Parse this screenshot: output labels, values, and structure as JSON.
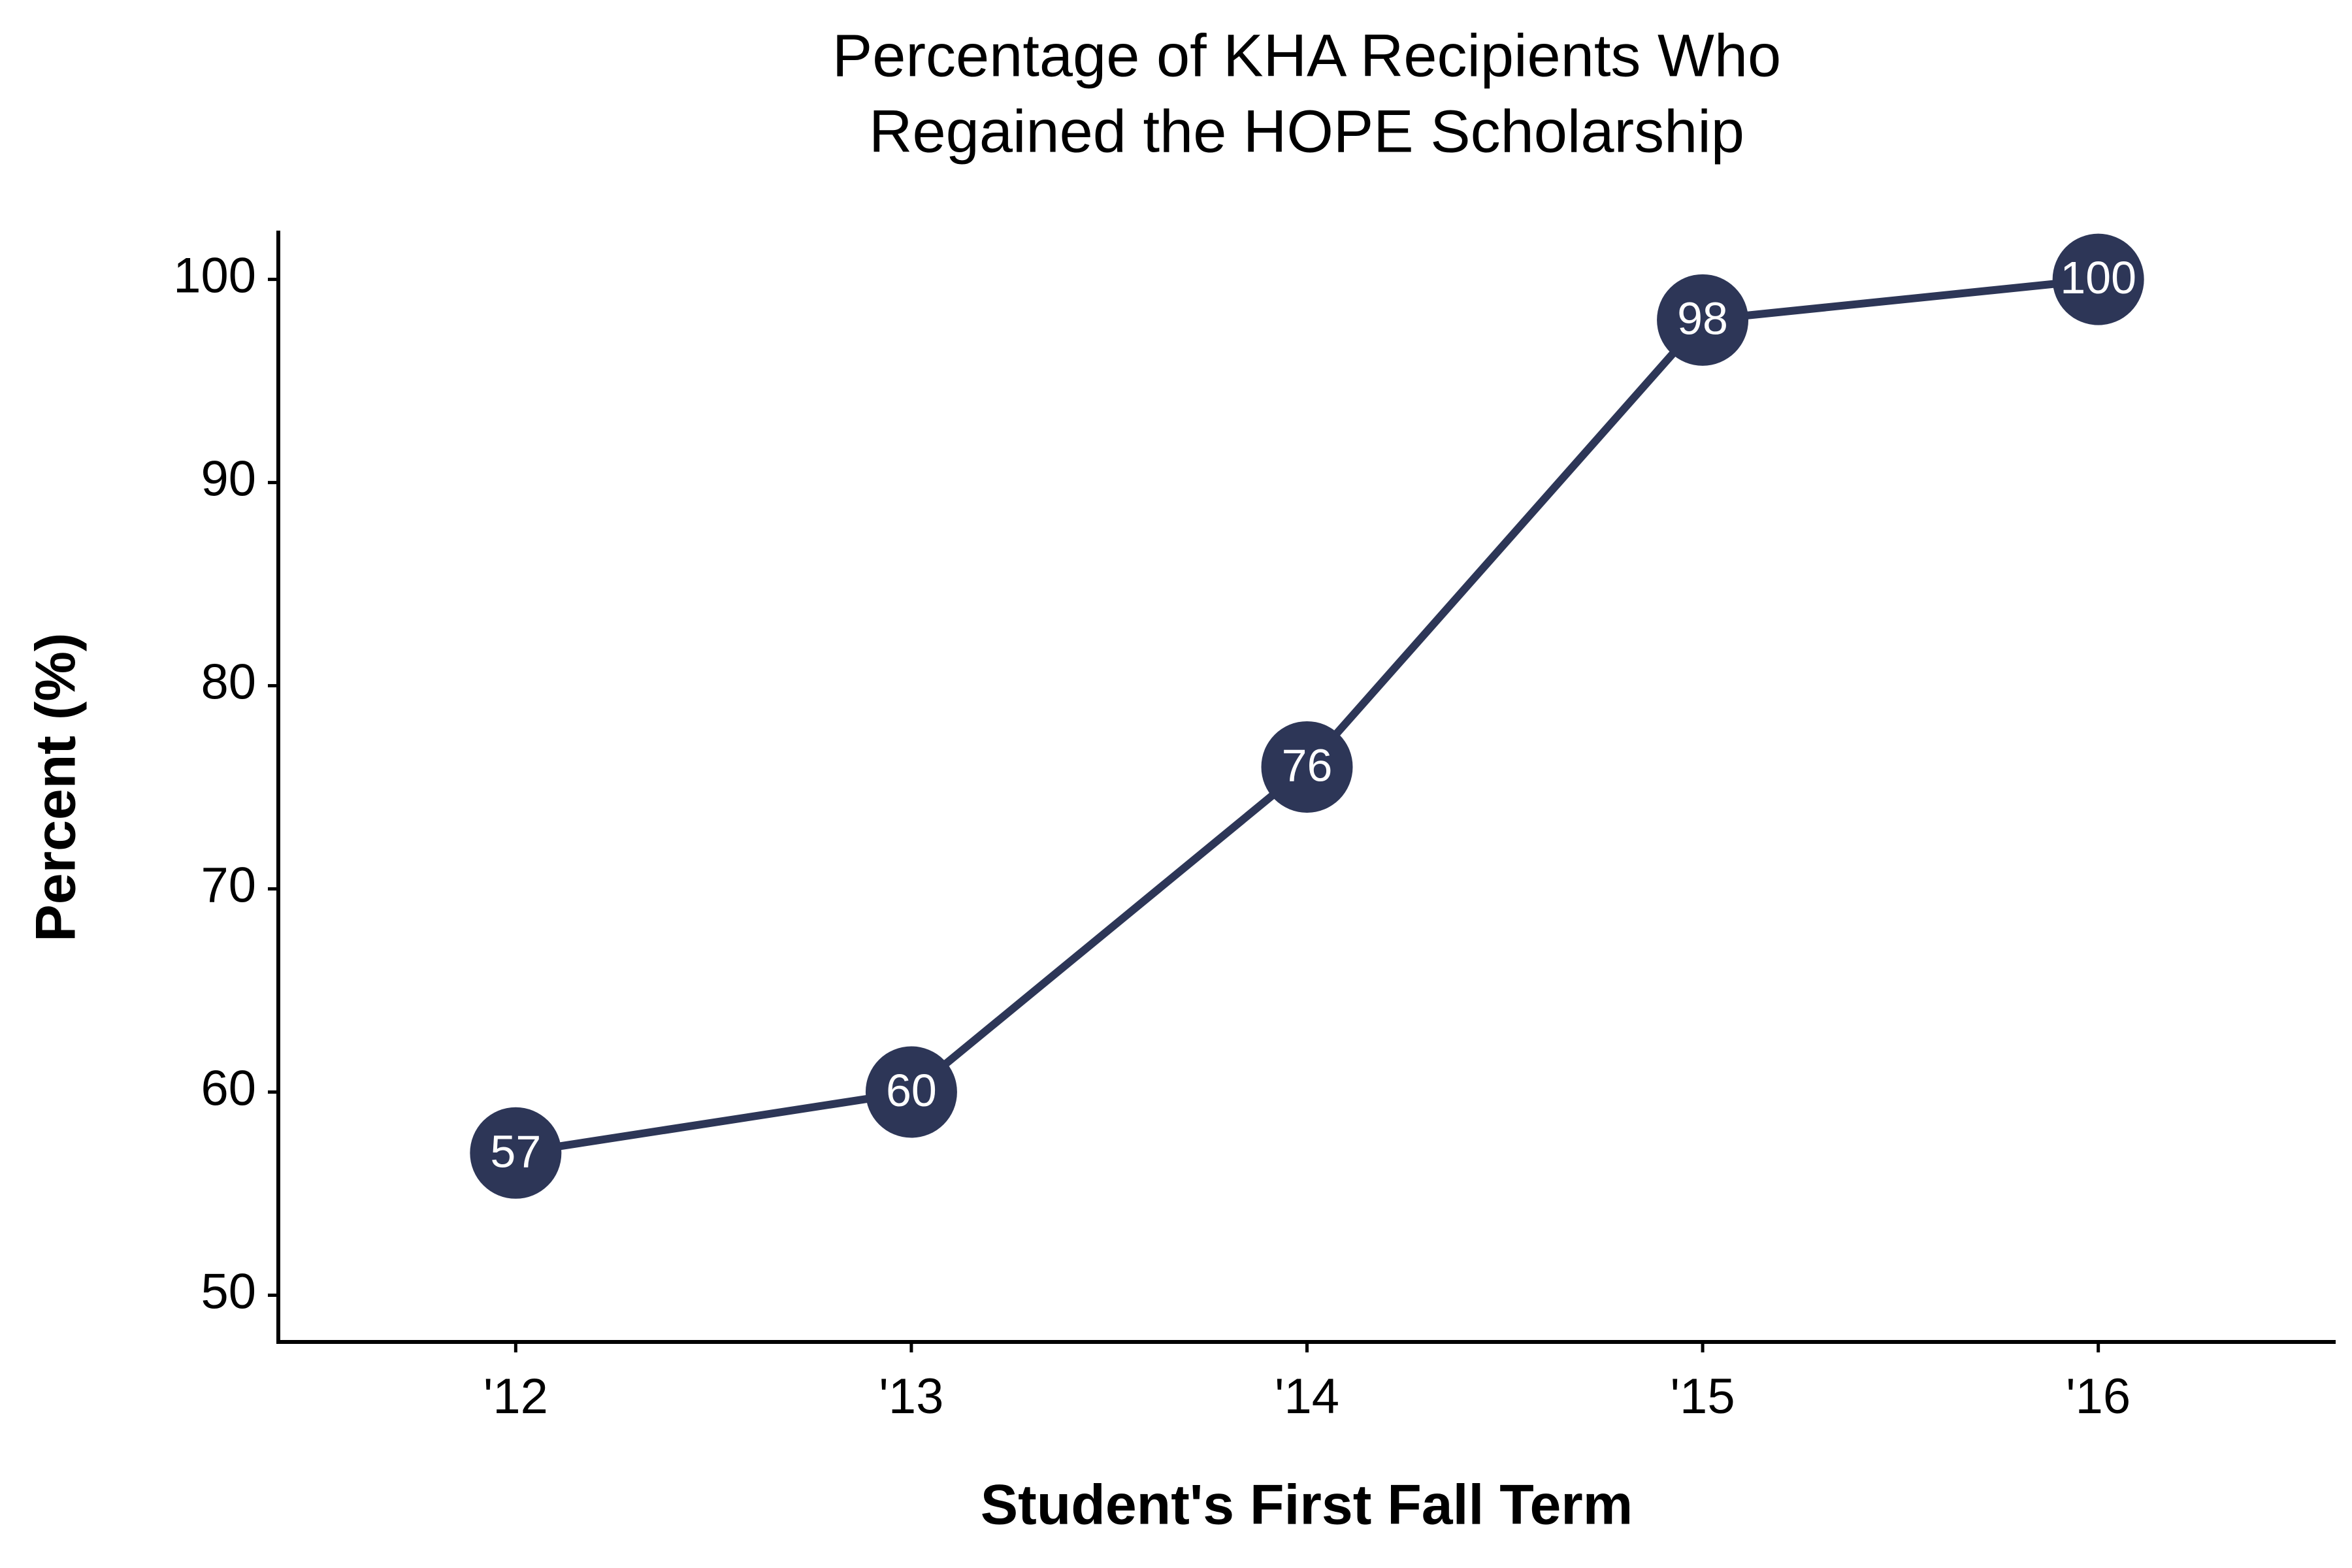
{
  "chart_data": {
    "type": "line",
    "title": [
      "Percentage of KHA Recipients Who",
      "Regained the HOPE Scholarship"
    ],
    "x_label": "Student's First Fall Term",
    "y_label": "Percent (%)",
    "categories": [
      "'12",
      "'13",
      "'14",
      "'15",
      "'16"
    ],
    "values": [
      57,
      60,
      76,
      98,
      100
    ],
    "color": "#2d3657",
    "ylim": [
      47.7,
      102.4
    ],
    "yticks": [
      50,
      60,
      70,
      80,
      90,
      100
    ],
    "grid": false
  }
}
